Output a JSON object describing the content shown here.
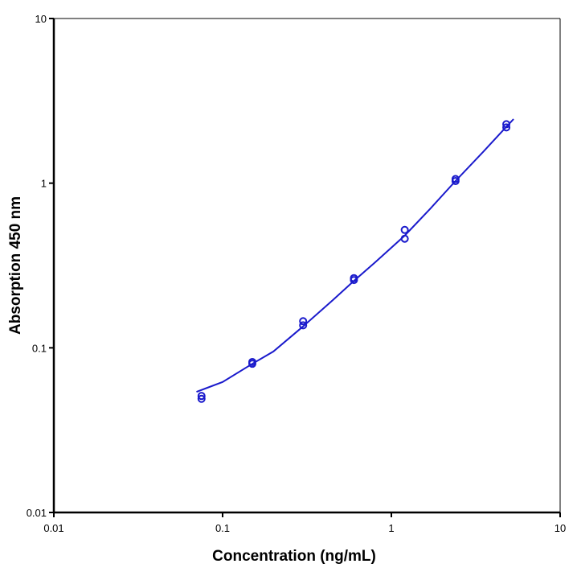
{
  "chart_data": {
    "type": "scatter",
    "title": "",
    "xlabel": "Concentration (ng/mL)",
    "ylabel": "Absorption 450 nm",
    "xscale": "log",
    "yscale": "log",
    "xlim": [
      0.01,
      10
    ],
    "ylim": [
      0.01,
      10
    ],
    "xticks": [
      "0.01",
      "0.1",
      "1",
      "10"
    ],
    "yticks": [
      "0.01",
      "0.1",
      "1",
      "10"
    ],
    "grid": false,
    "legend": "none",
    "color": "#1a1acc",
    "series": [
      {
        "points": [
          {
            "x": 0.075,
            "y": 0.051
          },
          {
            "x": 0.075,
            "y": 0.049
          },
          {
            "x": 0.15,
            "y": 0.082
          },
          {
            "x": 0.15,
            "y": 0.08
          },
          {
            "x": 0.3,
            "y": 0.145
          },
          {
            "x": 0.3,
            "y": 0.137
          },
          {
            "x": 0.6,
            "y": 0.265
          },
          {
            "x": 0.6,
            "y": 0.258
          },
          {
            "x": 1.2,
            "y": 0.52
          },
          {
            "x": 1.2,
            "y": 0.46
          },
          {
            "x": 2.4,
            "y": 1.06
          },
          {
            "x": 2.4,
            "y": 1.03
          },
          {
            "x": 4.8,
            "y": 2.28
          },
          {
            "x": 4.8,
            "y": 2.18
          }
        ]
      }
    ],
    "fit_curve": [
      {
        "x": 0.07,
        "y": 0.054
      },
      {
        "x": 0.1,
        "y": 0.062
      },
      {
        "x": 0.15,
        "y": 0.08
      },
      {
        "x": 0.2,
        "y": 0.095
      },
      {
        "x": 0.3,
        "y": 0.135
      },
      {
        "x": 0.45,
        "y": 0.195
      },
      {
        "x": 0.6,
        "y": 0.255
      },
      {
        "x": 0.8,
        "y": 0.33
      },
      {
        "x": 1.2,
        "y": 0.48
      },
      {
        "x": 1.7,
        "y": 0.7
      },
      {
        "x": 2.4,
        "y": 1.03
      },
      {
        "x": 3.5,
        "y": 1.55
      },
      {
        "x": 4.8,
        "y": 2.2
      },
      {
        "x": 5.3,
        "y": 2.45
      }
    ]
  }
}
